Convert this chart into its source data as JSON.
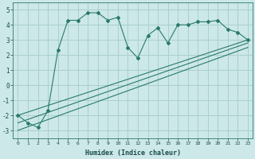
{
  "xlabel": "Humidex (Indice chaleur)",
  "ylabel": "",
  "background_color": "#cce8e8",
  "grid_color": "#aacfcf",
  "line_color": "#2a7a6a",
  "xlim": [
    -0.5,
    23.5
  ],
  "ylim": [
    -3.5,
    5.5
  ],
  "xticks": [
    0,
    1,
    2,
    3,
    4,
    5,
    6,
    7,
    8,
    9,
    10,
    11,
    12,
    13,
    14,
    15,
    16,
    17,
    18,
    19,
    20,
    21,
    22,
    23
  ],
  "yticks": [
    -3,
    -2,
    -1,
    0,
    1,
    2,
    3,
    4,
    5
  ],
  "line1_x": [
    0,
    1,
    2,
    3,
    4,
    5,
    6,
    7,
    8,
    9,
    10,
    11,
    12,
    13,
    14,
    15,
    16,
    17,
    18,
    19,
    20,
    21,
    22,
    23
  ],
  "line1_y": [
    -2.0,
    -2.5,
    -2.8,
    -1.7,
    2.3,
    4.3,
    4.3,
    4.8,
    4.8,
    4.3,
    4.5,
    2.5,
    1.8,
    3.3,
    3.8,
    2.8,
    4.0,
    4.0,
    4.2,
    4.2,
    4.3,
    3.7,
    3.5,
    3.0
  ],
  "line2_x": [
    0,
    23
  ],
  "line2_y": [
    -2.0,
    3.0
  ],
  "line3_x": [
    0,
    23
  ],
  "line3_y": [
    -2.5,
    2.8
  ],
  "line4_x": [
    0,
    23
  ],
  "line4_y": [
    -3.0,
    2.5
  ]
}
